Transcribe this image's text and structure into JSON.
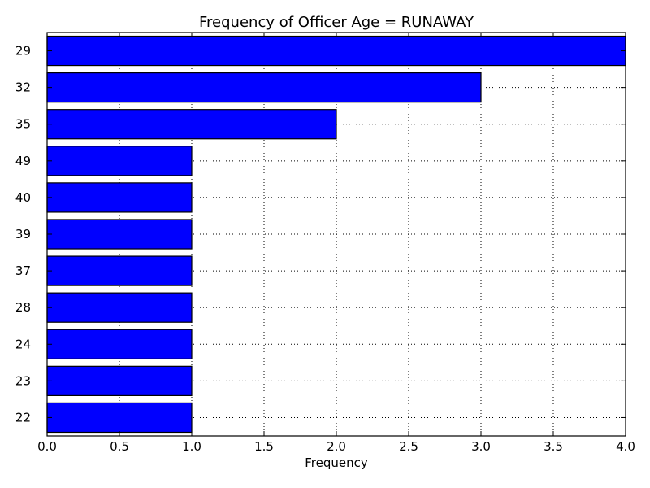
{
  "chart_data": {
    "type": "bar",
    "orientation": "horizontal",
    "title": "Frequency of Officer Age = RUNAWAY",
    "xlabel": "Frequency",
    "ylabel": "",
    "categories": [
      "29",
      "32",
      "35",
      "49",
      "40",
      "39",
      "37",
      "28",
      "24",
      "23",
      "22"
    ],
    "values": [
      4,
      3,
      2,
      1,
      1,
      1,
      1,
      1,
      1,
      1,
      1
    ],
    "xlim": [
      0,
      4
    ],
    "xticks": [
      "0.0",
      "0.5",
      "1.0",
      "1.5",
      "2.0",
      "2.5",
      "3.0",
      "3.5",
      "4.0"
    ],
    "bar_color": "#0000ff",
    "grid": true
  }
}
